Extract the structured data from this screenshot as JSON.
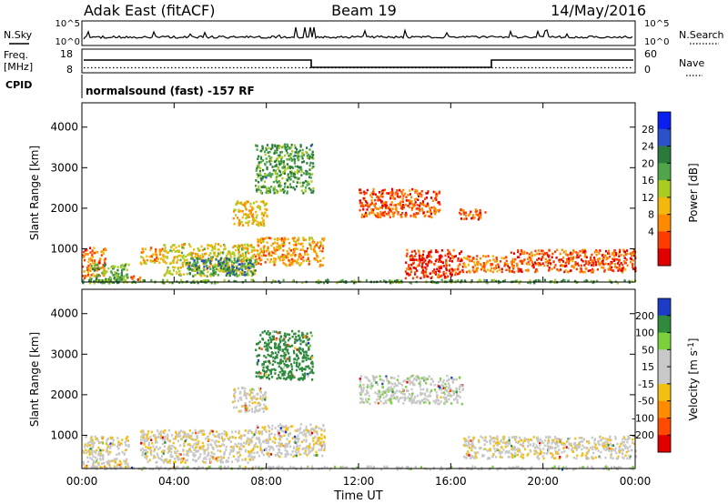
{
  "header": {
    "title": "Adak East (fitACF)",
    "beam": "Beam 19",
    "date": "14/May/2016"
  },
  "strip": {
    "nsky_label": "N.Sky",
    "nsearch_label": "N.Search",
    "noise_ticks": [
      "10^5",
      "10^0"
    ],
    "freq_label": "Freq.",
    "freq_unit": "[MHz]",
    "freq_ticks": [
      "18",
      "8"
    ],
    "nave_label": "Nave",
    "nave_ticks": [
      "60",
      "0"
    ],
    "cpid_label": "CPID",
    "cpid_text": "normalsound (fast) -157 RF"
  },
  "colors": {
    "power": [
      "#0a1ef0",
      "#2b52c8",
      "#2a7a3c",
      "#4fa64a",
      "#a8cc20",
      "#f2b80c",
      "#ff8a00",
      "#ff3c00",
      "#e10000"
    ],
    "velocity": [
      "#1c3cc8",
      "#2f8a3c",
      "#7ad13c",
      "#c8c8c8",
      "#c8c8c8",
      "#f2c010",
      "#ff8c00",
      "#ff4a00",
      "#e10000"
    ]
  },
  "chart_data": [
    {
      "type": "heatmap",
      "xlabel": "",
      "ylabel": "Slant Range [km]",
      "x_ticks": [
        "00:00",
        "04:00",
        "08:00",
        "12:00",
        "16:00",
        "20:00",
        "00:00"
      ],
      "xlim": [
        0,
        24
      ],
      "y_ticks": [
        "1000",
        "2000",
        "3000",
        "4000"
      ],
      "ylim": [
        180,
        4600
      ],
      "colorbar_label": "Power [dB]",
      "colorbar_ticks": [
        "28",
        "24",
        "20",
        "16",
        "12",
        "8",
        "4"
      ],
      "colorbar_range": [
        0,
        32
      ],
      "echo_regions": [
        {
          "t": [
            0.0,
            1.0
          ],
          "range": [
            300,
            1050
          ],
          "level": 8
        },
        {
          "t": [
            0.3,
            2.0
          ],
          "range": [
            180,
            650
          ],
          "level": 20
        },
        {
          "t": [
            2.0,
            2.5
          ],
          "range": [
            250,
            350
          ],
          "level": 6
        },
        {
          "t": [
            2.5,
            3.5
          ],
          "range": [
            650,
            1050
          ],
          "level": 10
        },
        {
          "t": [
            3.5,
            7.5
          ],
          "range": [
            350,
            1150
          ],
          "level": 14
        },
        {
          "t": [
            4.5,
            7.5
          ],
          "range": [
            350,
            800
          ],
          "level": 22
        },
        {
          "t": [
            7.5,
            10.5
          ],
          "range": [
            600,
            1300
          ],
          "level": 10
        },
        {
          "t": [
            6.5,
            8.0
          ],
          "range": [
            1600,
            2200
          ],
          "level": 12
        },
        {
          "t": [
            7.5,
            10.0
          ],
          "range": [
            2400,
            3600
          ],
          "level": 20
        },
        {
          "t": [
            12.0,
            15.5
          ],
          "range": [
            1800,
            2500
          ],
          "level": 6
        },
        {
          "t": [
            14.0,
            16.5
          ],
          "range": [
            300,
            1000
          ],
          "level": 4
        },
        {
          "t": [
            16.3,
            17.5
          ],
          "range": [
            1750,
            2000
          ],
          "level": 6
        },
        {
          "t": [
            16.5,
            18.5
          ],
          "range": [
            450,
            850
          ],
          "level": 8
        },
        {
          "t": [
            18.5,
            24.0
          ],
          "range": [
            450,
            1000
          ],
          "level": 6
        },
        {
          "t": [
            0.0,
            24.0
          ],
          "range": [
            180,
            260
          ],
          "level": 20
        }
      ]
    },
    {
      "type": "heatmap",
      "xlabel": "Time UT",
      "ylabel": "Slant Range [km]",
      "x_ticks": [
        "00:00",
        "04:00",
        "08:00",
        "12:00",
        "16:00",
        "20:00",
        "00:00"
      ],
      "xlim": [
        0,
        24
      ],
      "y_ticks": [
        "1000",
        "2000",
        "3000",
        "4000"
      ],
      "ylim": [
        180,
        4600
      ],
      "colorbar_label": "Velocity [m s^-1]",
      "colorbar_ticks": [
        "200",
        "100",
        "50",
        "15",
        "-15",
        "-50",
        "-100",
        "-200"
      ],
      "colorbar_range": [
        -250,
        250
      ],
      "echo_regions": [
        {
          "t": [
            0.0,
            2.0
          ],
          "range": [
            200,
            1000
          ],
          "velocity": 0
        },
        {
          "t": [
            2.5,
            7.5
          ],
          "range": [
            350,
            1150
          ],
          "velocity": 0
        },
        {
          "t": [
            7.5,
            10.5
          ],
          "range": [
            500,
            1300
          ],
          "velocity": 0
        },
        {
          "t": [
            6.5,
            8.0
          ],
          "range": [
            1600,
            2200
          ],
          "velocity": 0
        },
        {
          "t": [
            7.5,
            10.0
          ],
          "range": [
            2400,
            3600
          ],
          "velocity": 150
        },
        {
          "t": [
            12.0,
            16.5
          ],
          "range": [
            1800,
            2500
          ],
          "velocity": 30
        },
        {
          "t": [
            16.5,
            24.0
          ],
          "range": [
            450,
            1000
          ],
          "velocity": 0
        },
        {
          "t": [
            0.0,
            24.0
          ],
          "range": [
            180,
            260
          ],
          "velocity": 30
        }
      ]
    }
  ]
}
